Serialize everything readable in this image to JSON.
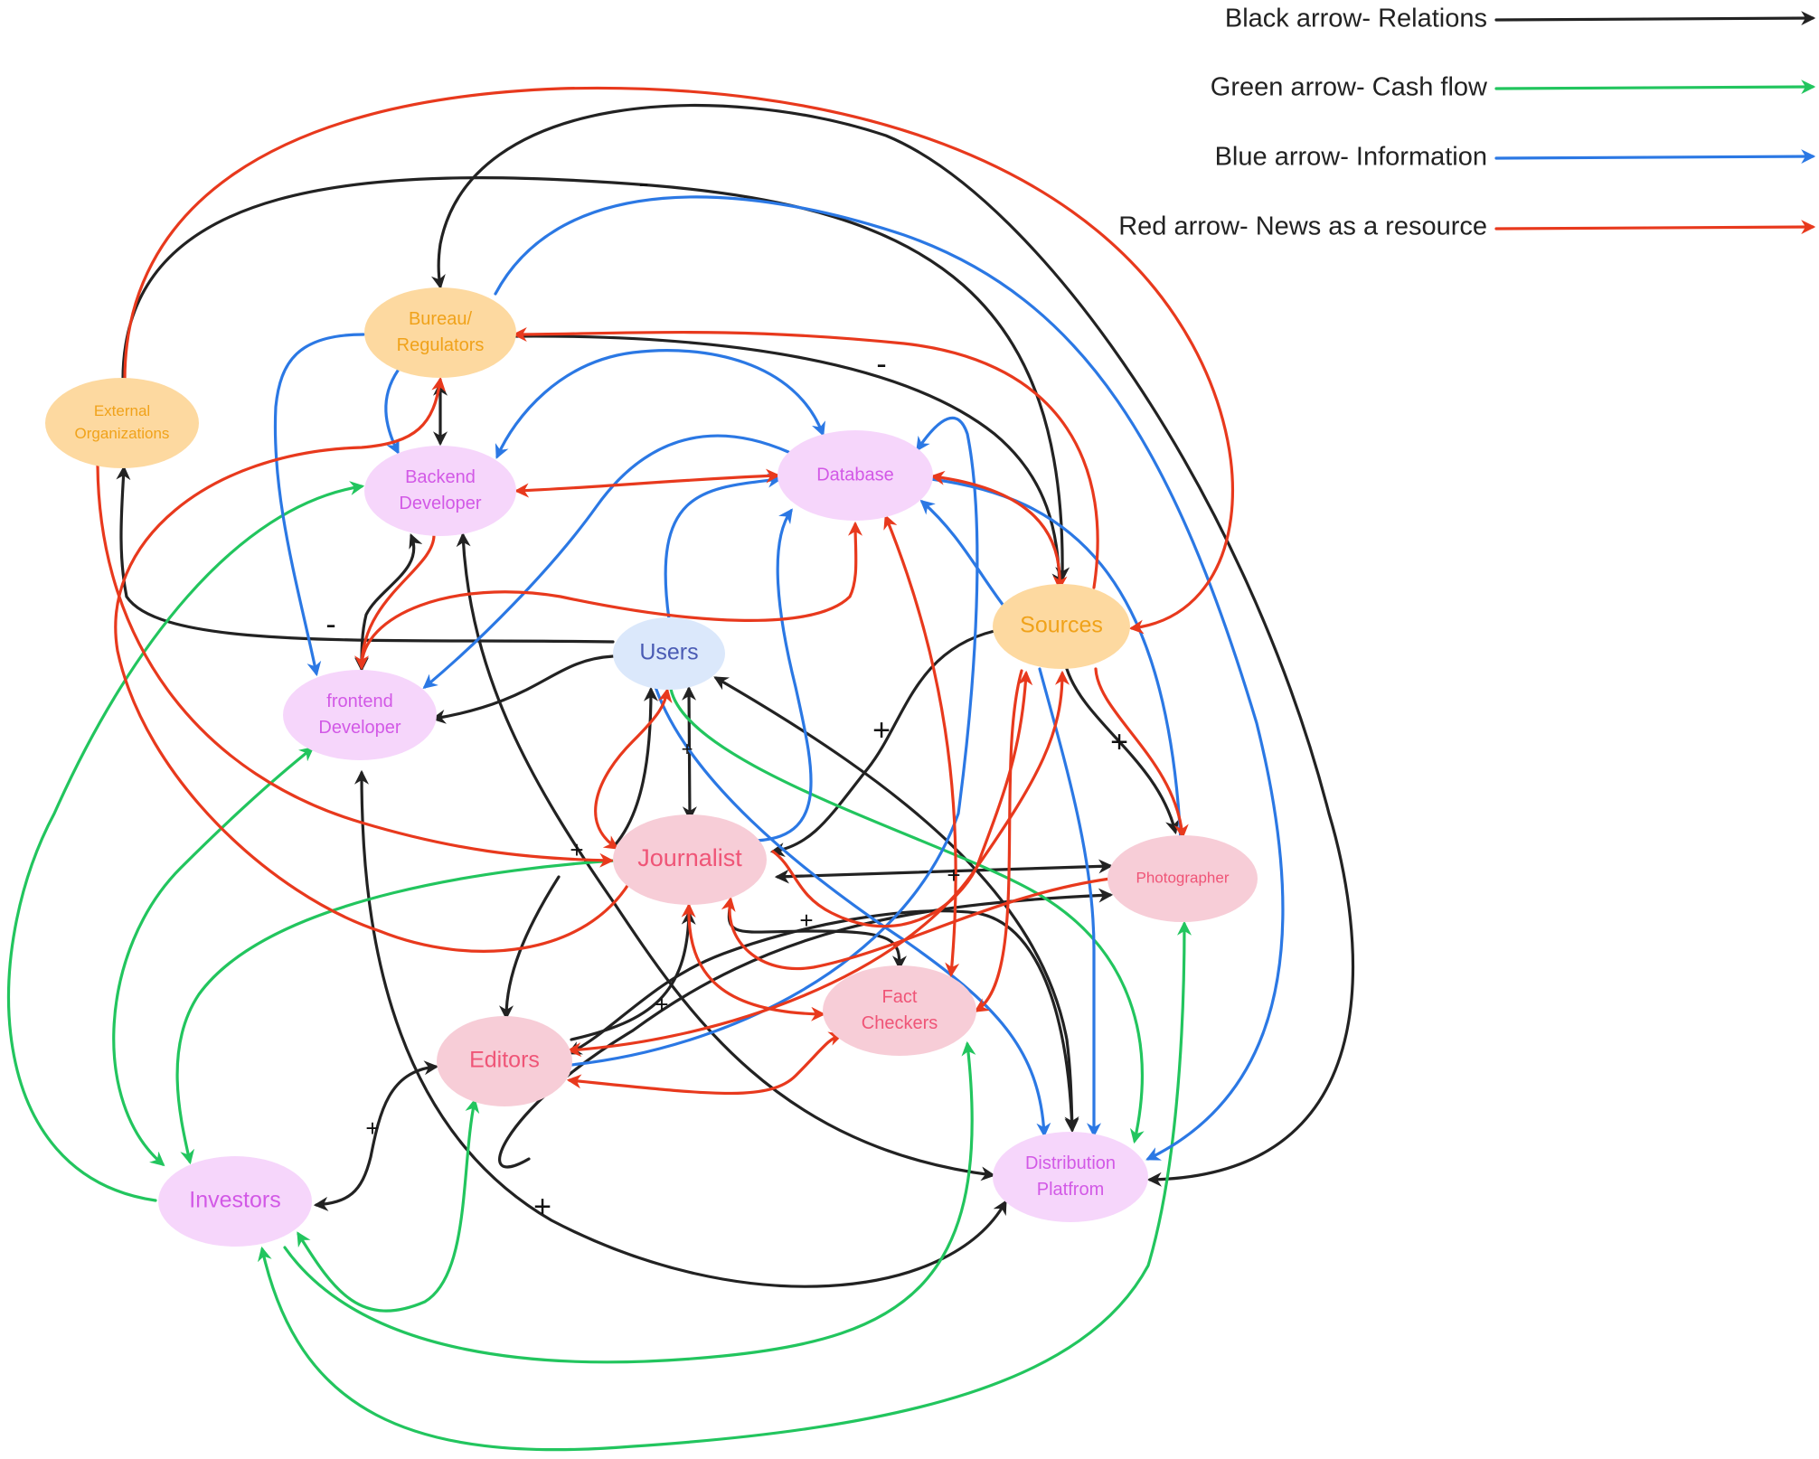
{
  "colors": {
    "relations": "#222222",
    "cash_flow": "#22c55e",
    "information": "#2b78e4",
    "news": "#e8391d",
    "orange_fill": "#fdd9a0",
    "orange_text": "#f0a21a",
    "purple_fill": "#f6d6fb",
    "purple_text": "#d259e6",
    "pink_fill": "#f7cdd7",
    "pink_text": "#ef5577",
    "blue_fill": "#dbe8fb",
    "blue_text": "#4a5bb4"
  },
  "legend": [
    {
      "id": "relations",
      "label": "Black arrow- Relations",
      "color": "relations"
    },
    {
      "id": "cash-flow",
      "label": "Green arrow- Cash flow",
      "color": "cash_flow"
    },
    {
      "id": "information",
      "label": "Blue arrow- Information",
      "color": "information"
    },
    {
      "id": "news",
      "label": "Red arrow- News as a resource",
      "color": "news"
    }
  ],
  "nodes": [
    {
      "id": "external",
      "lines": [
        "External",
        "Organizations"
      ],
      "fill": "orange_fill",
      "text": "orange_text"
    },
    {
      "id": "bureau",
      "lines": [
        "Bureau/",
        "Regulators"
      ],
      "fill": "orange_fill",
      "text": "orange_text"
    },
    {
      "id": "backend",
      "lines": [
        "Backend",
        "Developer"
      ],
      "fill": "purple_fill",
      "text": "purple_text"
    },
    {
      "id": "database",
      "lines": [
        "Database"
      ],
      "fill": "purple_fill",
      "text": "purple_text"
    },
    {
      "id": "sources",
      "lines": [
        "Sources"
      ],
      "fill": "orange_fill",
      "text": "orange_text"
    },
    {
      "id": "users",
      "lines": [
        "Users"
      ],
      "fill": "blue_fill",
      "text": "blue_text"
    },
    {
      "id": "frontend",
      "lines": [
        "frontend",
        "Developer"
      ],
      "fill": "purple_fill",
      "text": "purple_text"
    },
    {
      "id": "journalist",
      "lines": [
        "Journalist"
      ],
      "fill": "pink_fill",
      "text": "pink_text"
    },
    {
      "id": "photographer",
      "lines": [
        "Photographer"
      ],
      "fill": "pink_fill",
      "text": "pink_text"
    },
    {
      "id": "factcheckers",
      "lines": [
        "Fact",
        "Checkers"
      ],
      "fill": "pink_fill",
      "text": "pink_text"
    },
    {
      "id": "editors",
      "lines": [
        "Editors"
      ],
      "fill": "pink_fill",
      "text": "pink_text"
    },
    {
      "id": "investors",
      "lines": [
        "Investors"
      ],
      "fill": "purple_fill",
      "text": "purple_text"
    },
    {
      "id": "distribution",
      "lines": [
        "Distribution",
        "Platfrom"
      ],
      "fill": "purple_fill",
      "text": "purple_text"
    }
  ],
  "edges": [
    {
      "type": "relations",
      "from": "external",
      "to": "sources",
      "sign": "-"
    },
    {
      "type": "relations",
      "from": "users",
      "to": "external",
      "sign": "-"
    },
    {
      "type": "relations",
      "from": "bureau",
      "to": "sources",
      "sign": "-"
    },
    {
      "type": "relations",
      "from": "bureau",
      "to": "backend"
    },
    {
      "type": "relations",
      "from": "distribution",
      "to": "bureau"
    },
    {
      "type": "relations",
      "from": "backend",
      "to": "frontend"
    },
    {
      "type": "relations",
      "from": "users",
      "to": "frontend"
    },
    {
      "type": "relations",
      "from": "users",
      "to": "journalist",
      "sign": "+"
    },
    {
      "type": "relations",
      "from": "journalist",
      "to": "users"
    },
    {
      "type": "relations",
      "from": "users",
      "to": "distribution"
    },
    {
      "type": "relations",
      "from": "sources",
      "to": "journalist",
      "sign": "+"
    },
    {
      "type": "relations",
      "from": "sources",
      "to": "photographer",
      "sign": "+"
    },
    {
      "type": "relations",
      "from": "journalist",
      "to": "photographer"
    },
    {
      "type": "relations",
      "from": "editors",
      "to": "photographer"
    },
    {
      "type": "relations",
      "from": "journalist",
      "to": "editors",
      "sign": "+"
    },
    {
      "type": "relations",
      "from": "editors",
      "to": "journalist",
      "sign": "+"
    },
    {
      "type": "relations",
      "from": "journalist",
      "to": "factcheckers",
      "sign": "+"
    },
    {
      "type": "relations",
      "from": "journalist",
      "to": "distribution"
    },
    {
      "type": "relations",
      "from": "editors",
      "to": "investors",
      "sign": "+"
    },
    {
      "type": "relations",
      "from": "frontend",
      "to": "distribution",
      "sign": "+"
    },
    {
      "type": "relations",
      "from": "backend",
      "to": "distribution"
    },
    {
      "type": "cash_flow",
      "from": "users",
      "to": "distribution"
    },
    {
      "type": "cash_flow",
      "from": "investors",
      "to": "backend"
    },
    {
      "type": "cash_flow",
      "from": "investors",
      "to": "frontend"
    },
    {
      "type": "cash_flow",
      "from": "journalist",
      "to": "investors"
    },
    {
      "type": "cash_flow",
      "from": "investors",
      "to": "editors"
    },
    {
      "type": "cash_flow",
      "from": "investors",
      "to": "factcheckers"
    },
    {
      "type": "cash_flow",
      "from": "investors",
      "to": "photographer"
    },
    {
      "type": "information",
      "from": "bureau",
      "to": "frontend"
    },
    {
      "type": "information",
      "from": "bureau",
      "to": "backend"
    },
    {
      "type": "information",
      "from": "bureau",
      "to": "distribution"
    },
    {
      "type": "information",
      "from": "users",
      "to": "database"
    },
    {
      "type": "information",
      "from": "database",
      "to": "frontend"
    },
    {
      "type": "information",
      "from": "database",
      "to": "backend"
    },
    {
      "type": "information",
      "from": "journalist",
      "to": "database"
    },
    {
      "type": "information",
      "from": "editors",
      "to": "database"
    },
    {
      "type": "information",
      "from": "sources",
      "to": "database"
    },
    {
      "type": "information",
      "from": "sources",
      "to": "distribution"
    },
    {
      "type": "information",
      "from": "users",
      "to": "distribution"
    },
    {
      "type": "information",
      "from": "database",
      "to": "photographer"
    },
    {
      "type": "news",
      "from": "external",
      "to": "sources"
    },
    {
      "type": "news",
      "from": "external",
      "to": "journalist"
    },
    {
      "type": "news",
      "from": "frontend",
      "to": "bureau"
    },
    {
      "type": "news",
      "from": "sources",
      "to": "bureau"
    },
    {
      "type": "news",
      "from": "database",
      "to": "backend"
    },
    {
      "type": "news",
      "from": "backend",
      "to": "frontend"
    },
    {
      "type": "news",
      "from": "frontend",
      "to": "database"
    },
    {
      "type": "news",
      "from": "database",
      "to": "sources"
    },
    {
      "type": "news",
      "from": "sources",
      "to": "photographer"
    },
    {
      "type": "news",
      "from": "users",
      "to": "journalist"
    },
    {
      "type": "news",
      "from": "journalist",
      "to": "users"
    },
    {
      "type": "news",
      "from": "journalist",
      "to": "factcheckers"
    },
    {
      "type": "news",
      "from": "sources",
      "to": "editors"
    },
    {
      "type": "news",
      "from": "editors",
      "to": "factcheckers"
    },
    {
      "type": "news",
      "from": "photographer",
      "to": "journalist"
    },
    {
      "type": "news",
      "from": "database",
      "to": "factcheckers"
    },
    {
      "type": "news",
      "from": "sources",
      "to": "factcheckers"
    },
    {
      "type": "news",
      "from": "backend",
      "to": "journalist"
    }
  ]
}
